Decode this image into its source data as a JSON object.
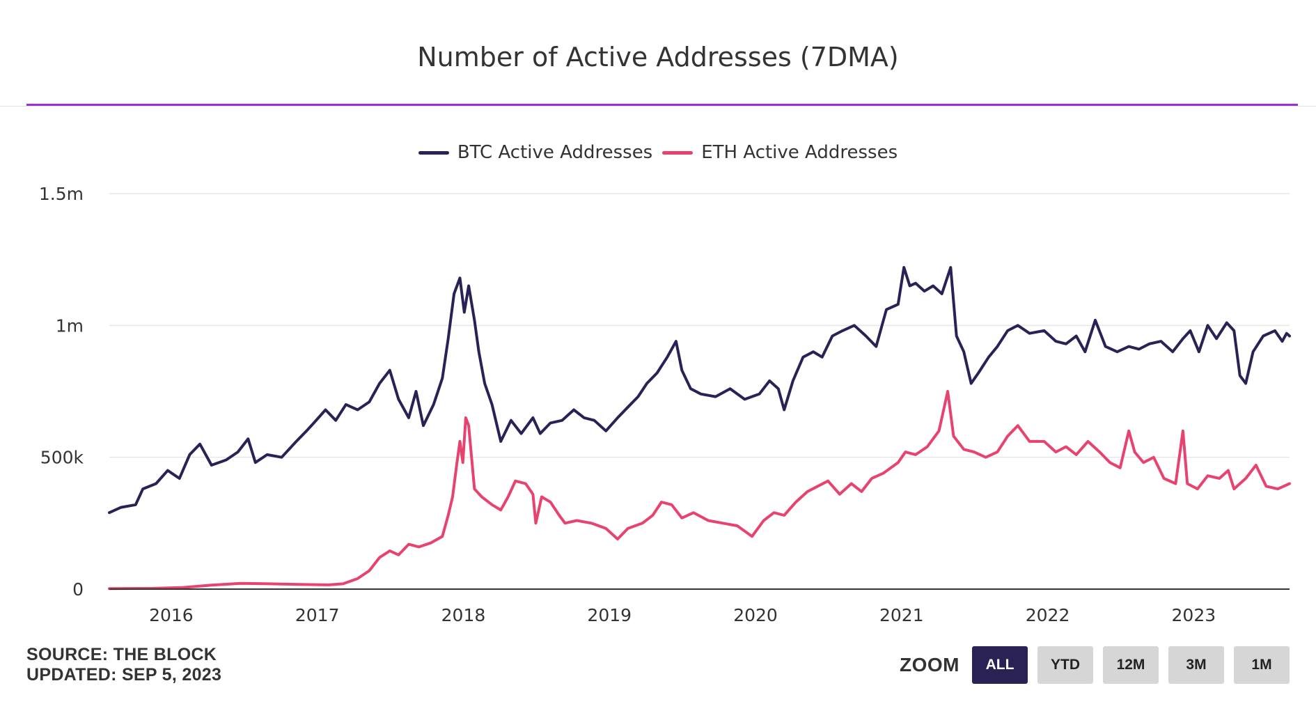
{
  "title": "Number of Active Addresses (7DMA)",
  "legend": [
    {
      "label": "BTC Active Addresses",
      "color": "#2a2255"
    },
    {
      "label": "ETH Active Addresses",
      "color": "#e8436e"
    }
  ],
  "footer": {
    "source": "SOURCE: THE BLOCK",
    "updated": "UPDATED: SEP 5, 2023"
  },
  "zoom": {
    "label": "ZOOM",
    "buttons": [
      "ALL",
      "YTD",
      "12M",
      "3M",
      "1M"
    ],
    "active": "ALL"
  },
  "chart_data": {
    "type": "line",
    "title": "Number of Active Addresses (7DMA)",
    "xlim": [
      2015.6,
      2023.68
    ],
    "ylim": [
      0,
      1500000
    ],
    "y_ticks": [
      {
        "value": 0,
        "label": "0"
      },
      {
        "value": 500000,
        "label": "500k"
      },
      {
        "value": 1000000,
        "label": "1m"
      },
      {
        "value": 1500000,
        "label": "1.5m"
      }
    ],
    "x_ticks": [
      {
        "value": 2016,
        "label": "2016"
      },
      {
        "value": 2017,
        "label": "2017"
      },
      {
        "value": 2018,
        "label": "2018"
      },
      {
        "value": 2019,
        "label": "2019"
      },
      {
        "value": 2020,
        "label": "2020"
      },
      {
        "value": 2021,
        "label": "2021"
      },
      {
        "value": 2022,
        "label": "2022"
      },
      {
        "value": 2023,
        "label": "2023"
      }
    ],
    "grid": true,
    "legend_position": "top",
    "series": [
      {
        "name": "BTC Active Addresses",
        "color": "#2a2255",
        "points": [
          [
            2015.6,
            290000
          ],
          [
            2015.68,
            310000
          ],
          [
            2015.78,
            320000
          ],
          [
            2015.83,
            380000
          ],
          [
            2015.92,
            400000
          ],
          [
            2016.0,
            450000
          ],
          [
            2016.08,
            420000
          ],
          [
            2016.15,
            510000
          ],
          [
            2016.22,
            550000
          ],
          [
            2016.3,
            470000
          ],
          [
            2016.4,
            490000
          ],
          [
            2016.48,
            520000
          ],
          [
            2016.55,
            570000
          ],
          [
            2016.6,
            480000
          ],
          [
            2016.68,
            510000
          ],
          [
            2016.78,
            500000
          ],
          [
            2016.88,
            560000
          ],
          [
            2016.95,
            600000
          ],
          [
            2017.0,
            630000
          ],
          [
            2017.08,
            680000
          ],
          [
            2017.15,
            640000
          ],
          [
            2017.22,
            700000
          ],
          [
            2017.3,
            680000
          ],
          [
            2017.38,
            710000
          ],
          [
            2017.45,
            780000
          ],
          [
            2017.52,
            830000
          ],
          [
            2017.58,
            720000
          ],
          [
            2017.65,
            650000
          ],
          [
            2017.7,
            750000
          ],
          [
            2017.75,
            620000
          ],
          [
            2017.82,
            700000
          ],
          [
            2017.88,
            800000
          ],
          [
            2017.92,
            950000
          ],
          [
            2017.96,
            1120000
          ],
          [
            2018.0,
            1180000
          ],
          [
            2018.03,
            1050000
          ],
          [
            2018.06,
            1150000
          ],
          [
            2018.1,
            1020000
          ],
          [
            2018.13,
            900000
          ],
          [
            2018.17,
            780000
          ],
          [
            2018.22,
            700000
          ],
          [
            2018.28,
            560000
          ],
          [
            2018.35,
            640000
          ],
          [
            2018.42,
            590000
          ],
          [
            2018.5,
            650000
          ],
          [
            2018.55,
            590000
          ],
          [
            2018.62,
            630000
          ],
          [
            2018.7,
            640000
          ],
          [
            2018.78,
            680000
          ],
          [
            2018.85,
            650000
          ],
          [
            2018.92,
            640000
          ],
          [
            2019.0,
            600000
          ],
          [
            2019.08,
            650000
          ],
          [
            2019.15,
            690000
          ],
          [
            2019.22,
            730000
          ],
          [
            2019.28,
            780000
          ],
          [
            2019.35,
            820000
          ],
          [
            2019.42,
            880000
          ],
          [
            2019.48,
            940000
          ],
          [
            2019.52,
            830000
          ],
          [
            2019.58,
            760000
          ],
          [
            2019.65,
            740000
          ],
          [
            2019.75,
            730000
          ],
          [
            2019.85,
            760000
          ],
          [
            2019.95,
            720000
          ],
          [
            2020.05,
            740000
          ],
          [
            2020.12,
            790000
          ],
          [
            2020.18,
            760000
          ],
          [
            2020.22,
            680000
          ],
          [
            2020.28,
            790000
          ],
          [
            2020.35,
            880000
          ],
          [
            2020.42,
            900000
          ],
          [
            2020.48,
            880000
          ],
          [
            2020.55,
            960000
          ],
          [
            2020.62,
            980000
          ],
          [
            2020.7,
            1000000
          ],
          [
            2020.78,
            960000
          ],
          [
            2020.85,
            920000
          ],
          [
            2020.92,
            1060000
          ],
          [
            2021.0,
            1080000
          ],
          [
            2021.04,
            1220000
          ],
          [
            2021.08,
            1150000
          ],
          [
            2021.12,
            1160000
          ],
          [
            2021.18,
            1130000
          ],
          [
            2021.24,
            1150000
          ],
          [
            2021.3,
            1120000
          ],
          [
            2021.36,
            1220000
          ],
          [
            2021.4,
            960000
          ],
          [
            2021.45,
            900000
          ],
          [
            2021.5,
            780000
          ],
          [
            2021.55,
            820000
          ],
          [
            2021.62,
            880000
          ],
          [
            2021.68,
            920000
          ],
          [
            2021.75,
            980000
          ],
          [
            2021.82,
            1000000
          ],
          [
            2021.9,
            970000
          ],
          [
            2022.0,
            980000
          ],
          [
            2022.08,
            940000
          ],
          [
            2022.15,
            930000
          ],
          [
            2022.22,
            960000
          ],
          [
            2022.28,
            900000
          ],
          [
            2022.35,
            1020000
          ],
          [
            2022.42,
            920000
          ],
          [
            2022.5,
            900000
          ],
          [
            2022.58,
            920000
          ],
          [
            2022.65,
            910000
          ],
          [
            2022.72,
            930000
          ],
          [
            2022.8,
            940000
          ],
          [
            2022.88,
            900000
          ],
          [
            2022.95,
            950000
          ],
          [
            2023.0,
            980000
          ],
          [
            2023.06,
            900000
          ],
          [
            2023.12,
            1000000
          ],
          [
            2023.18,
            950000
          ],
          [
            2023.25,
            1010000
          ],
          [
            2023.3,
            980000
          ],
          [
            2023.34,
            810000
          ],
          [
            2023.38,
            780000
          ],
          [
            2023.43,
            900000
          ],
          [
            2023.5,
            960000
          ],
          [
            2023.58,
            980000
          ],
          [
            2023.63,
            940000
          ],
          [
            2023.66,
            970000
          ],
          [
            2023.68,
            960000
          ]
        ]
      },
      {
        "name": "ETH Active Addresses",
        "color": "#e8436e",
        "points": [
          [
            2015.6,
            2000
          ],
          [
            2015.9,
            3000
          ],
          [
            2016.1,
            6000
          ],
          [
            2016.3,
            15000
          ],
          [
            2016.5,
            22000
          ],
          [
            2016.7,
            20000
          ],
          [
            2016.9,
            18000
          ],
          [
            2017.1,
            16000
          ],
          [
            2017.2,
            20000
          ],
          [
            2017.3,
            40000
          ],
          [
            2017.38,
            70000
          ],
          [
            2017.45,
            120000
          ],
          [
            2017.52,
            145000
          ],
          [
            2017.58,
            130000
          ],
          [
            2017.65,
            170000
          ],
          [
            2017.72,
            160000
          ],
          [
            2017.8,
            175000
          ],
          [
            2017.88,
            200000
          ],
          [
            2017.92,
            280000
          ],
          [
            2017.95,
            350000
          ],
          [
            2017.98,
            480000
          ],
          [
            2018.0,
            560000
          ],
          [
            2018.02,
            480000
          ],
          [
            2018.04,
            650000
          ],
          [
            2018.06,
            620000
          ],
          [
            2018.1,
            380000
          ],
          [
            2018.15,
            350000
          ],
          [
            2018.22,
            320000
          ],
          [
            2018.28,
            300000
          ],
          [
            2018.33,
            350000
          ],
          [
            2018.38,
            410000
          ],
          [
            2018.45,
            400000
          ],
          [
            2018.5,
            360000
          ],
          [
            2018.52,
            250000
          ],
          [
            2018.56,
            350000
          ],
          [
            2018.62,
            330000
          ],
          [
            2018.68,
            280000
          ],
          [
            2018.72,
            250000
          ],
          [
            2018.8,
            260000
          ],
          [
            2018.9,
            250000
          ],
          [
            2019.0,
            230000
          ],
          [
            2019.08,
            190000
          ],
          [
            2019.15,
            230000
          ],
          [
            2019.25,
            250000
          ],
          [
            2019.32,
            280000
          ],
          [
            2019.38,
            330000
          ],
          [
            2019.45,
            320000
          ],
          [
            2019.52,
            270000
          ],
          [
            2019.6,
            290000
          ],
          [
            2019.7,
            260000
          ],
          [
            2019.8,
            250000
          ],
          [
            2019.9,
            240000
          ],
          [
            2020.0,
            200000
          ],
          [
            2020.08,
            260000
          ],
          [
            2020.15,
            290000
          ],
          [
            2020.22,
            280000
          ],
          [
            2020.3,
            330000
          ],
          [
            2020.38,
            370000
          ],
          [
            2020.45,
            390000
          ],
          [
            2020.52,
            410000
          ],
          [
            2020.6,
            360000
          ],
          [
            2020.68,
            400000
          ],
          [
            2020.75,
            370000
          ],
          [
            2020.82,
            420000
          ],
          [
            2020.9,
            440000
          ],
          [
            2021.0,
            480000
          ],
          [
            2021.05,
            520000
          ],
          [
            2021.12,
            510000
          ],
          [
            2021.2,
            540000
          ],
          [
            2021.28,
            600000
          ],
          [
            2021.34,
            750000
          ],
          [
            2021.38,
            580000
          ],
          [
            2021.45,
            530000
          ],
          [
            2021.52,
            520000
          ],
          [
            2021.6,
            500000
          ],
          [
            2021.68,
            520000
          ],
          [
            2021.75,
            580000
          ],
          [
            2021.82,
            620000
          ],
          [
            2021.9,
            560000
          ],
          [
            2022.0,
            560000
          ],
          [
            2022.08,
            520000
          ],
          [
            2022.15,
            540000
          ],
          [
            2022.22,
            510000
          ],
          [
            2022.3,
            560000
          ],
          [
            2022.38,
            520000
          ],
          [
            2022.45,
            480000
          ],
          [
            2022.52,
            460000
          ],
          [
            2022.58,
            600000
          ],
          [
            2022.62,
            520000
          ],
          [
            2022.68,
            480000
          ],
          [
            2022.75,
            500000
          ],
          [
            2022.82,
            420000
          ],
          [
            2022.9,
            400000
          ],
          [
            2022.95,
            600000
          ],
          [
            2022.98,
            400000
          ],
          [
            2023.05,
            380000
          ],
          [
            2023.12,
            430000
          ],
          [
            2023.2,
            420000
          ],
          [
            2023.26,
            450000
          ],
          [
            2023.3,
            380000
          ],
          [
            2023.38,
            420000
          ],
          [
            2023.45,
            470000
          ],
          [
            2023.52,
            390000
          ],
          [
            2023.6,
            380000
          ],
          [
            2023.68,
            400000
          ]
        ]
      }
    ]
  }
}
